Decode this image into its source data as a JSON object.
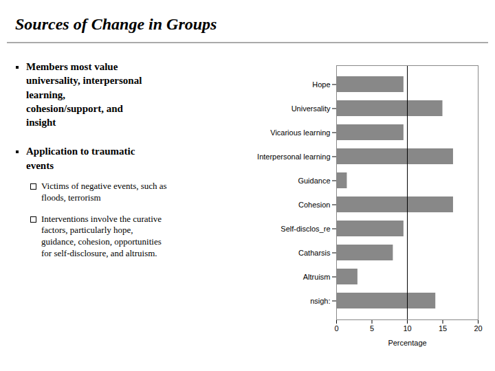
{
  "chart_data": {
    "type": "bar",
    "orientation": "horizontal",
    "title": "Sources of Change in Groups",
    "annotations": [
      "Members most value\nuniversality, interpersonal\nlearning,\ncohesion/support, and\ninsight",
      "Application to traumatic\nevents",
      "Victims of negative events, such as\nfloods, terrorism",
      "Interventions involve the curative\nfactors, particularly hope,\nguidance, cohesion, opportunities\nfor self-disclosure, and altruism."
    ],
    "categories": [
      "Hope",
      "Universality",
      "Vicarious learning",
      "Interpersonal learning",
      "Guidance",
      "Cohesion",
      "Self-disclos_re",
      "Catharsis",
      "Altruism",
      "nsigh:"
    ],
    "values": [
      9.5,
      15.0,
      9.5,
      16.5,
      1.5,
      16.5,
      9.5,
      8.0,
      3.0,
      14.0
    ],
    "color": "#888888",
    "xlabel": "Percentage",
    "xlim": [
      0,
      20
    ],
    "xticks": [
      0,
      5,
      10,
      15,
      20
    ],
    "reference_line": 10,
    "grid": false
  }
}
